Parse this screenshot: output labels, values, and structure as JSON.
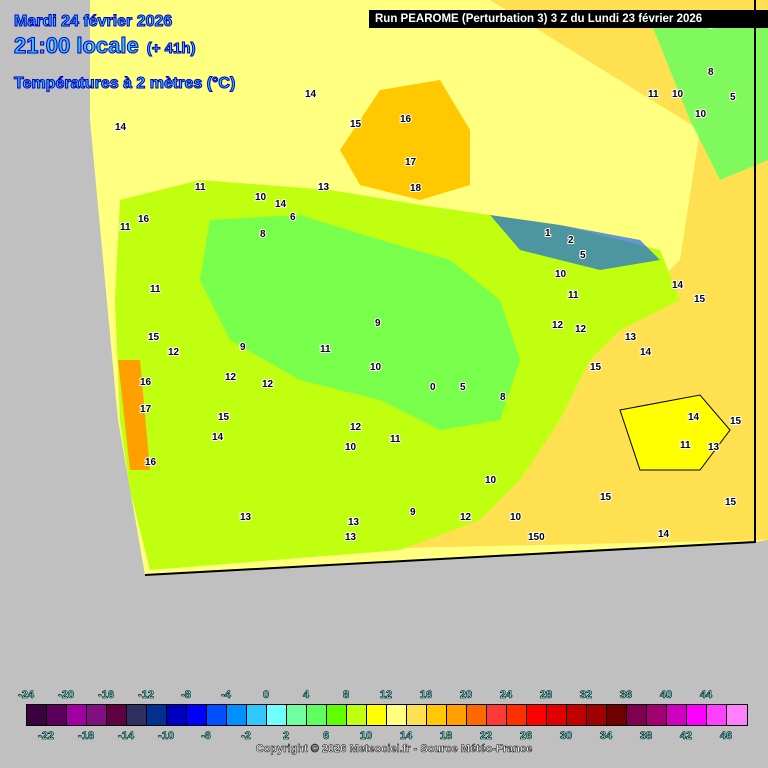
{
  "header": {
    "date": "Mardi 24 février 2026",
    "time": "21:00 locale",
    "lead": "(+ 41h)",
    "parameter": "Températures à 2 mètres (°C)",
    "run": "Run PEAROME (Perturbation 3) 3 Z du Lundi 23 février 2026"
  },
  "legend": {
    "top_labels": [
      "-24",
      "-20",
      "-16",
      "-12",
      "-8",
      "-4",
      "0",
      "4",
      "8",
      "12",
      "16",
      "20",
      "24",
      "28",
      "32",
      "36",
      "40",
      "44"
    ],
    "bottom_labels": [
      "-22",
      "-18",
      "-14",
      "-10",
      "-6",
      "-2",
      "2",
      "6",
      "10",
      "14",
      "18",
      "22",
      "26",
      "30",
      "34",
      "38",
      "42",
      "46"
    ],
    "colors": [
      "#3a0040",
      "#5a005a",
      "#a000a0",
      "#801080",
      "#600040",
      "#303060",
      "#003090",
      "#0000c0",
      "#0000ff",
      "#0050ff",
      "#0090ff",
      "#30c8ff",
      "#70ffff",
      "#70ffa0",
      "#60ff60",
      "#60ff00",
      "#c0ff10",
      "#ffff00",
      "#ffff80",
      "#ffe050",
      "#ffc800",
      "#ffa000",
      "#ff6800",
      "#ff3838",
      "#ff3000",
      "#ff0000",
      "#e00000",
      "#c00000",
      "#a00000",
      "#700000",
      "#800050",
      "#a00070",
      "#d000c0",
      "#ff00ff",
      "#ff40ff",
      "#ff80ff"
    ]
  },
  "map_labels": [
    "14",
    "14",
    "15",
    "16",
    "17",
    "18",
    "13",
    "11",
    "10",
    "6",
    "8",
    "16",
    "11",
    "14",
    "11",
    "15",
    "12",
    "16",
    "17",
    "15",
    "9",
    "12",
    "11",
    "12",
    "9",
    "10",
    "12",
    "11",
    "10",
    "12",
    "0",
    "5",
    "8",
    "15",
    "16",
    "14",
    "13",
    "13",
    "13",
    "9",
    "12",
    "10",
    "10",
    "1",
    "2",
    "5",
    "10",
    "11",
    "12",
    "14",
    "15",
    "13",
    "14",
    "15",
    "14",
    "11",
    "13",
    "15",
    "14",
    "10",
    "9",
    "11",
    "10",
    "5",
    "8",
    "15",
    "150"
  ],
  "copyright": "Copyright © 2026 Meteociel.fr - Source Météo-France"
}
